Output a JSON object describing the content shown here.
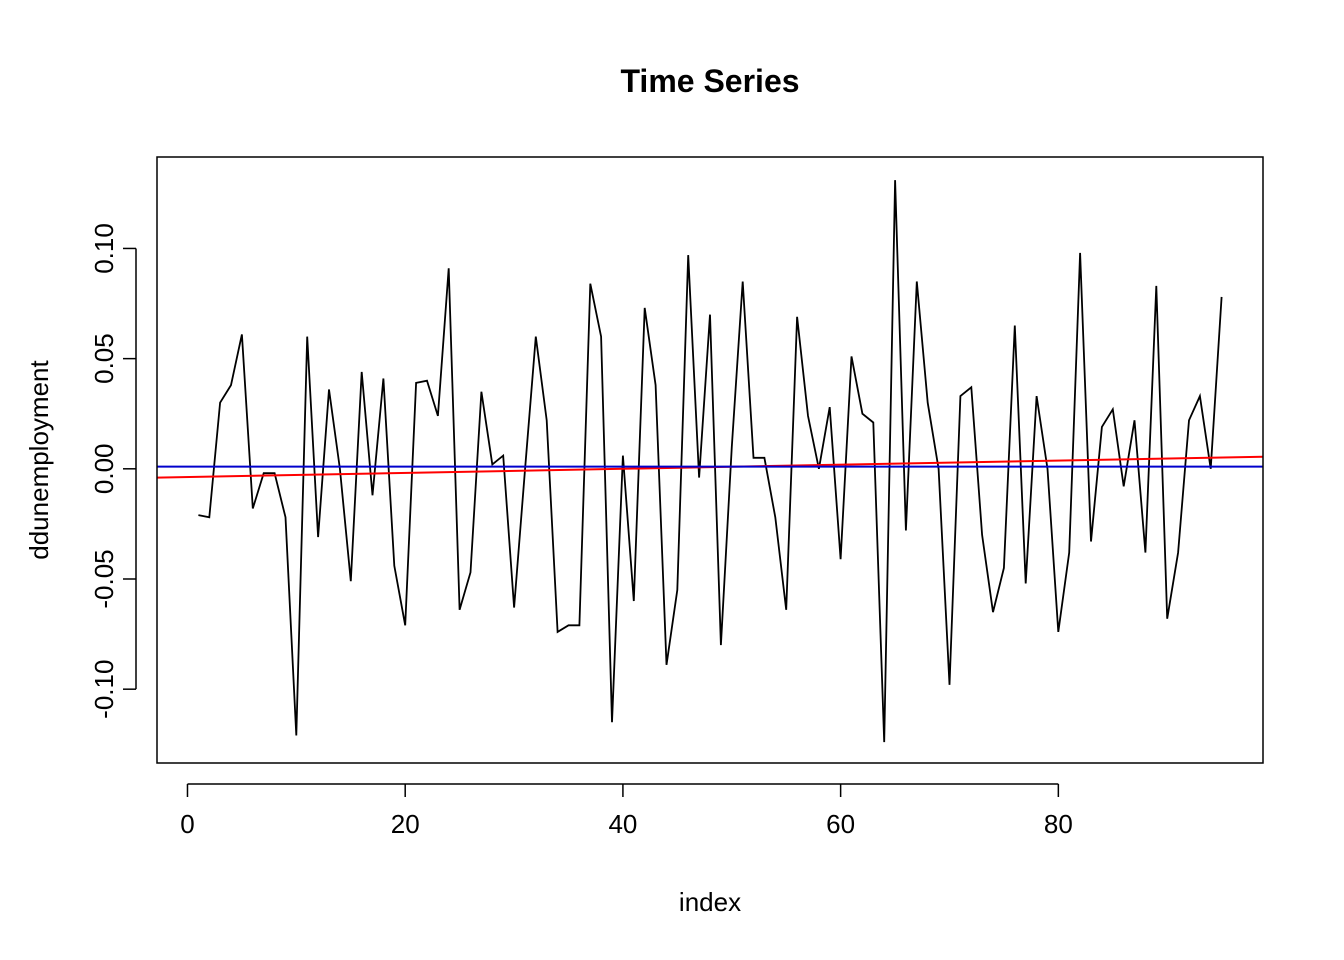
{
  "chart_data": {
    "type": "line",
    "title": "Time Series",
    "xlabel": "index",
    "ylabel": "ddunemployment",
    "xlim": [
      -2.8,
      98.8
    ],
    "ylim": [
      -0.1335,
      0.1415
    ],
    "x_ticks": [
      0,
      20,
      40,
      60,
      80
    ],
    "x_tick_labels": [
      "0",
      "20",
      "40",
      "60",
      "80"
    ],
    "y_ticks": [
      -0.1,
      -0.05,
      0.0,
      0.05,
      0.1
    ],
    "y_tick_labels": [
      "-0.10",
      "-0.05",
      "0.00",
      "0.05",
      "0.10"
    ],
    "grid": false,
    "legend": "none",
    "series": [
      {
        "color": "#000000",
        "x": [
          1,
          2,
          3,
          4,
          5,
          6,
          7,
          8,
          9,
          10,
          11,
          12,
          13,
          14,
          15,
          16,
          17,
          18,
          19,
          20,
          21,
          22,
          23,
          24,
          25,
          26,
          27,
          28,
          29,
          30,
          31,
          32,
          33,
          34,
          35,
          36,
          37,
          38,
          39,
          40,
          41,
          42,
          43,
          44,
          45,
          46,
          47,
          48,
          49,
          50,
          51,
          52,
          53,
          54,
          55,
          56,
          57,
          58,
          59,
          60,
          61,
          62,
          63,
          64,
          65,
          66,
          67,
          68,
          69,
          70,
          71,
          72,
          73,
          74,
          75,
          76,
          77,
          78,
          79,
          80,
          81,
          82,
          83,
          84,
          85,
          86,
          87,
          88,
          89,
          90,
          91,
          92,
          93,
          94,
          95
        ],
        "y": [
          -0.021,
          -0.022,
          0.03,
          0.038,
          0.061,
          -0.018,
          -0.002,
          -0.002,
          -0.022,
          -0.121,
          0.06,
          -0.031,
          0.036,
          0.0,
          -0.051,
          0.044,
          -0.012,
          0.041,
          -0.044,
          -0.071,
          0.039,
          0.04,
          0.024,
          0.091,
          -0.064,
          -0.047,
          0.035,
          0.002,
          0.006,
          -0.063,
          -0.001,
          0.06,
          0.022,
          -0.074,
          -0.071,
          -0.071,
          0.084,
          0.06,
          -0.115,
          0.006,
          -0.06,
          0.073,
          0.038,
          -0.089,
          -0.055,
          0.097,
          -0.004,
          0.07,
          -0.08,
          0.01,
          0.085,
          0.005,
          0.005,
          -0.022,
          -0.064,
          0.069,
          0.024,
          0.0,
          0.028,
          -0.041,
          0.051,
          0.025,
          0.021,
          -0.124,
          0.131,
          -0.028,
          0.085,
          0.03,
          0.0,
          -0.098,
          0.033,
          0.037,
          -0.03,
          -0.065,
          -0.045,
          0.065,
          -0.052,
          0.033,
          0.0,
          -0.074,
          -0.038,
          0.098,
          -0.033,
          0.019,
          0.027,
          -0.008,
          0.022,
          -0.038,
          0.083,
          -0.068,
          -0.038,
          0.022,
          0.033,
          0.0,
          0.078
        ]
      },
      {
        "color": "#ff0000",
        "x": [
          -2.8,
          98.8
        ],
        "y": [
          -0.004,
          0.0055
        ]
      },
      {
        "color": "#0000cc",
        "x": [
          -2.8,
          98.8
        ],
        "y": [
          0.001,
          0.001
        ]
      }
    ]
  }
}
